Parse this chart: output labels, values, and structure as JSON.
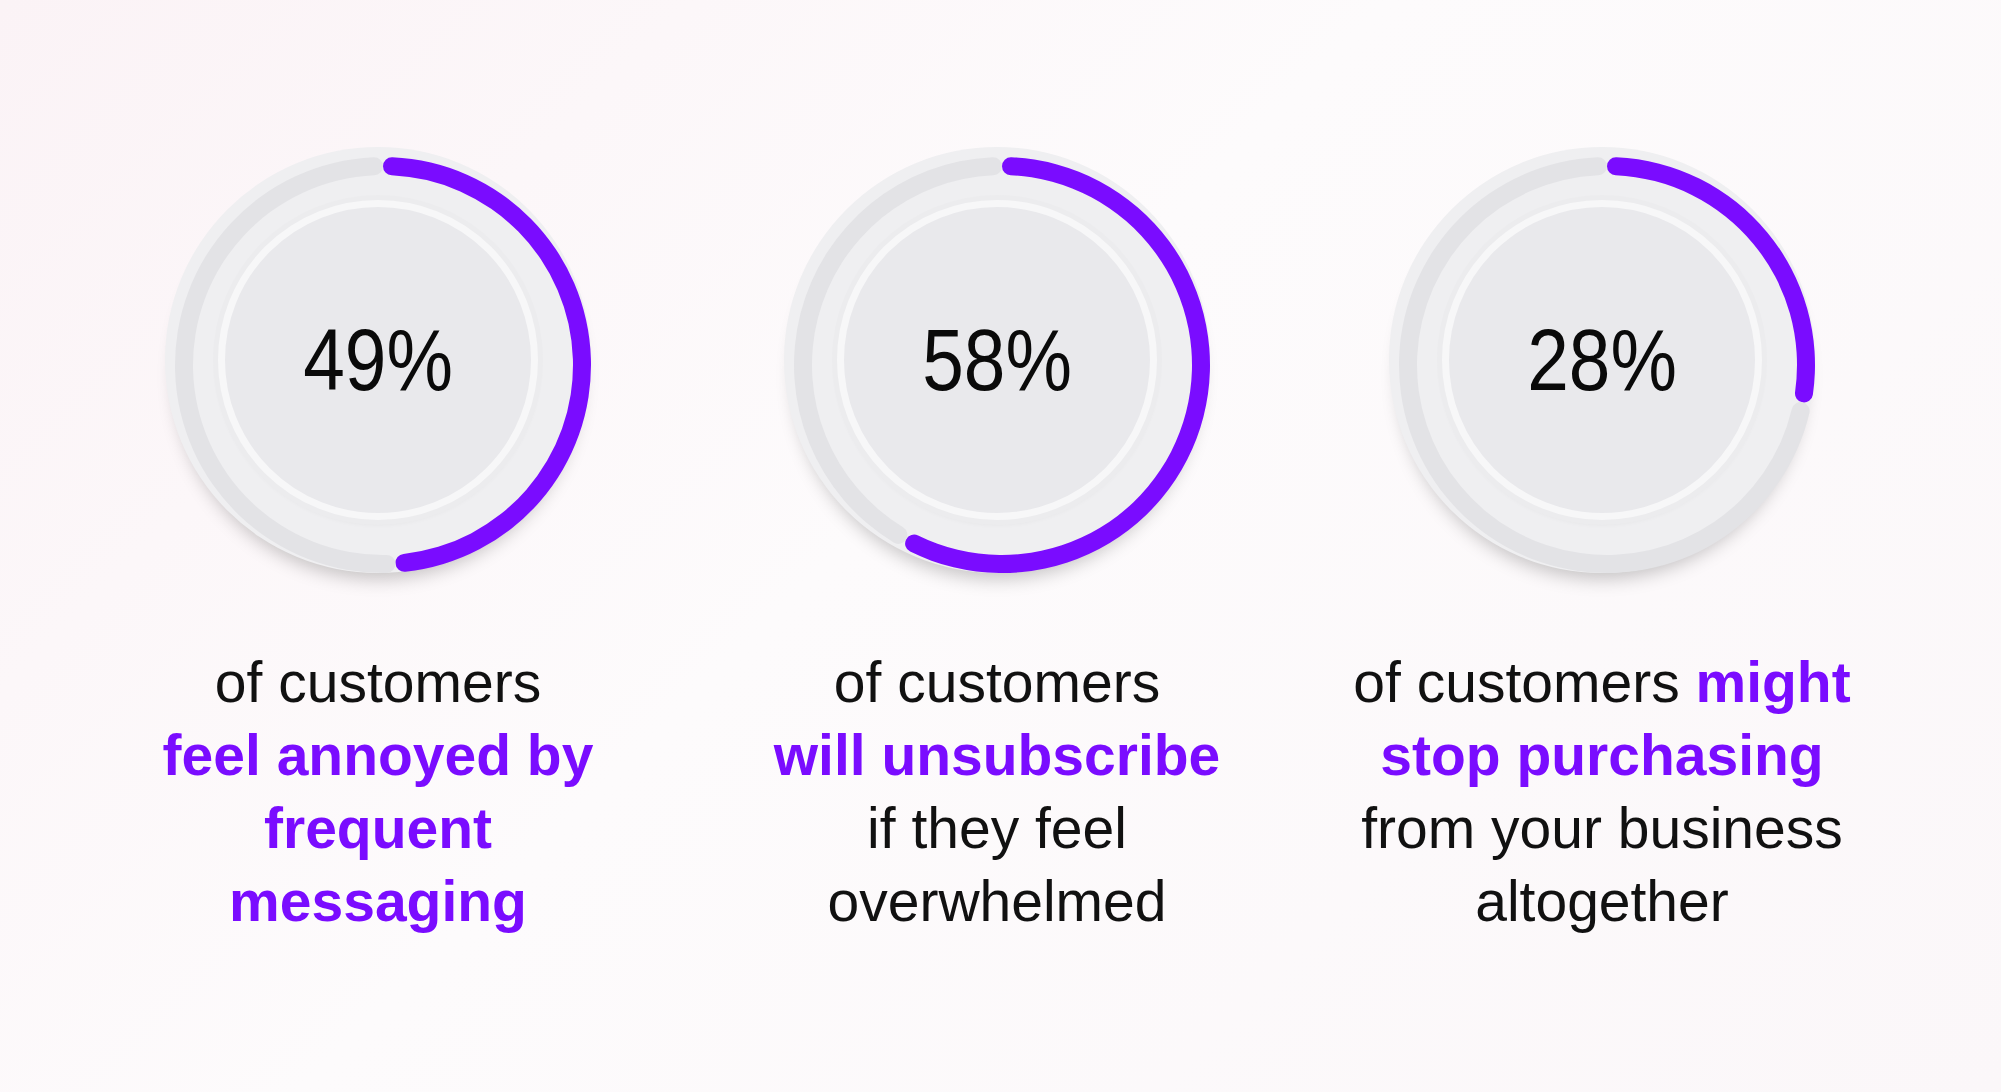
{
  "chart_data": [
    {
      "type": "donut",
      "categories": [
        null,
        null
      ],
      "values": [
        49,
        51
      ],
      "colors": [
        "#7a0cff",
        "#e3e3e6"
      ],
      "value_labels": [
        "49%",
        null
      ],
      "annotations": [
        "of customers\n",
        "feel annoyed by\nfrequent\nmessaging"
      ]
    },
    {
      "type": "donut",
      "categories": [
        null,
        null
      ],
      "values": [
        58,
        42
      ],
      "colors": [
        "#7a0cff",
        "#e3e3e6"
      ],
      "value_labels": [
        "58%",
        null
      ],
      "annotations": [
        "of customers\n",
        "will unsubscribe\n",
        "if they feel\noverwhelmed"
      ]
    },
    {
      "type": "donut",
      "categories": [
        null,
        null
      ],
      "values": [
        28,
        72
      ],
      "colors": [
        "#7a0cff",
        "#e3e3e6"
      ],
      "value_labels": [
        "28%",
        null
      ],
      "annotations": [
        "of customers ",
        "might",
        "\nstop purchasing\n",
        "from your business\naltogether"
      ]
    }
  ]
}
